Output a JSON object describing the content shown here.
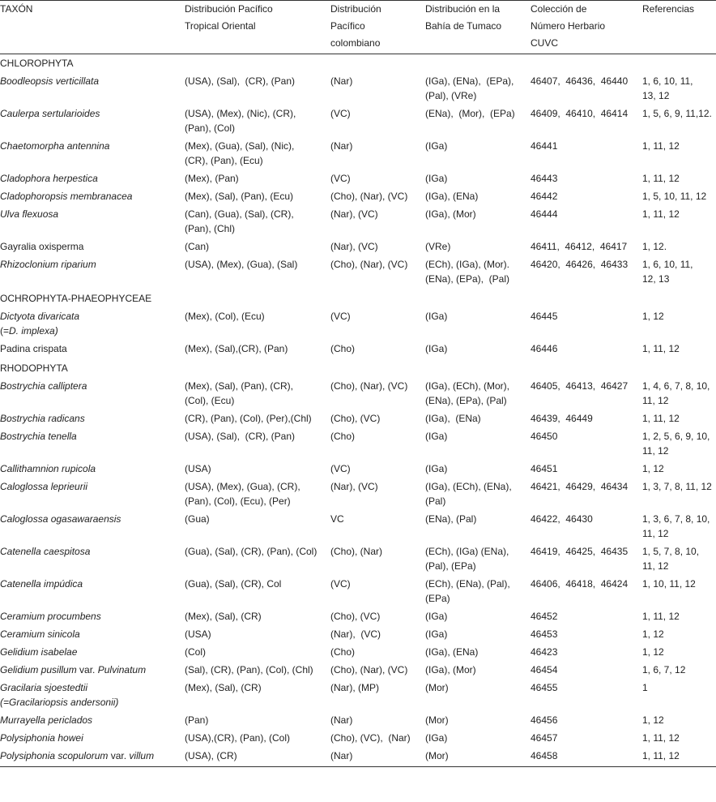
{
  "headers": [
    "TAXÓN",
    "Distribución Pacífico\nTropical Oriental",
    "Distribución\nPacífico\ncolombiano",
    "Distribución en la\nBahía de Tumaco",
    "Colección de\nNúmero Herbario\nCUVC",
    "Referencias"
  ],
  "sections": [
    {
      "title": "CHLOROPHYTA",
      "rows": [
        {
          "taxon": [
            [
              "Boodleopsis verticillata",
              1
            ]
          ],
          "pto": "(USA), (Sal),  (CR), (Pan)",
          "pc": "(Nar)",
          "bt": "(IGa), (ENa),  (EPa),\n(Pal), (VRe)",
          "cuvc": "46407,  46436,  46440",
          "refs": "1, 6, 10, 11,\n13, 12"
        },
        {
          "taxon": [
            [
              "Caulerpa sertularioides",
              1
            ]
          ],
          "pto": "(USA), (Mex), (Nic), (CR),\n(Pan), (Col)",
          "pc": "(VC)",
          "bt": "(ENa),  (Mor),  (EPa)",
          "cuvc": "46409,  46410,  46414",
          "refs": "1, 5, 6, 9, 11,12."
        },
        {
          "taxon": [
            [
              "Chaetomorpha antennina",
              1
            ]
          ],
          "pto": "(Mex), (Gua), (Sal), (Nic),\n(CR), (Pan), (Ecu)",
          "pc": "(Nar)",
          "bt": "(IGa)",
          "cuvc": "46441",
          "refs": "1, 11, 12"
        },
        {
          "taxon": [
            [
              "Cladophora herpestica",
              1
            ]
          ],
          "pto": "(Mex), (Pan)",
          "pc": "(VC)",
          "bt": "(IGa)",
          "cuvc": "46443",
          "refs": "1, 11, 12"
        },
        {
          "taxon": [
            [
              "Cladophoropsis membranacea",
              1
            ]
          ],
          "pto": "(Mex), (Sal), (Pan), (Ecu)",
          "pc": "(Cho), (Nar), (VC)",
          "bt": "(IGa), (ENa)",
          "cuvc": "46442",
          "refs": "1, 5, 10, 11, 12"
        },
        {
          "taxon": [
            [
              "Ulva flexuosa",
              1
            ]
          ],
          "pto": "(Can), (Gua), (Sal), (CR),\n(Pan), (Chl)",
          "pc": "(Nar), (VC)",
          "bt": "(IGa), (Mor)",
          "cuvc": "46444",
          "refs": "1, 11, 12"
        },
        {
          "taxon": [
            [
              "Gayralia oxisperma",
              0
            ]
          ],
          "pto": "(Can)",
          "pc": "(Nar), (VC)",
          "bt": "(VRe)",
          "cuvc": "46411,  46412,  46417",
          "refs": "1, 12."
        },
        {
          "taxon": [
            [
              "Rhizoclonium riparium",
              1
            ]
          ],
          "pto": "(USA), (Mex), (Gua), (Sal)",
          "pc": "(Cho), (Nar), (VC)",
          "bt": "(ECh), (IGa), (Mor).\n(ENa), (EPa),  (Pal)",
          "cuvc": "46420,  46426,  46433",
          "refs": "1, 6, 10, 11,\n12, 13"
        }
      ]
    },
    {
      "title": "OCHROPHYTA-PHAEOPHYCEAE",
      "rows": [
        {
          "taxon": [
            [
              "Dictyota divaricata\n",
              1
            ],
            [
              "(=",
              0
            ],
            [
              "D. implexa)",
              1
            ]
          ],
          "pto": "(Mex), (Col), (Ecu)",
          "pc": "(VC)",
          "bt": "(IGa)",
          "cuvc": "46445",
          "refs": "1, 12"
        },
        {
          "taxon": [
            [
              "Padina crispata",
              0
            ]
          ],
          "pto": "(Mex), (Sal),(CR), (Pan)",
          "pc": "(Cho)",
          "bt": "(IGa)",
          "cuvc": "46446",
          "refs": "1, 11, 12"
        }
      ]
    },
    {
      "title": "RHODOPHYTA",
      "rows": [
        {
          "taxon": [
            [
              "Bostrychia calliptera",
              1
            ]
          ],
          "pto": "(Mex), (Sal), (Pan), (CR),\n(Col), (Ecu)",
          "pc": "(Cho), (Nar), (VC)",
          "bt": "(IGa), (ECh), (Mor),\n(ENa), (EPa), (Pal)",
          "cuvc": "46405,  46413,  46427",
          "refs": "1, 4, 6, 7, 8, 10,\n11, 12"
        },
        {
          "taxon": [
            [
              "Bostrychia radicans",
              1
            ]
          ],
          "pto": "(CR), (Pan), (Col), (Per),(Chl)",
          "pc": "(Cho), (VC)",
          "bt": "(IGa),  (ENa)",
          "cuvc": "46439,  46449",
          "refs": "1, 11, 12"
        },
        {
          "taxon": [
            [
              "Bostrychia tenella",
              1
            ]
          ],
          "pto": "(USA), (Sal),  (CR), (Pan)",
          "pc": "(Cho)",
          "bt": "(IGa)",
          "cuvc": "46450",
          "refs": "1, 2, 5, 6, 9, 10,\n11, 12"
        },
        {
          "taxon": [
            [
              "Callithamnion rupicola",
              1
            ]
          ],
          "pto": "(USA)",
          "pc": "(VC)",
          "bt": "(IGa)",
          "cuvc": "46451",
          "refs": "1, 12"
        },
        {
          "taxon": [
            [
              "Caloglossa leprieurii",
              1
            ]
          ],
          "pto": "(USA), (Mex), (Gua), (CR),\n(Pan), (Col), (Ecu), (Per)",
          "pc": "(Nar), (VC)",
          "bt": "(IGa), (ECh), (ENa),\n(Pal)",
          "cuvc": "46421,  46429,  46434",
          "refs": "1, 3, 7, 8, 11, 12"
        },
        {
          "taxon": [
            [
              "Caloglossa ogasawaraensis",
              1
            ]
          ],
          "pto": "(Gua)",
          "pc": "VC",
          "bt": "(ENa), (Pal)",
          "cuvc": "46422,  46430",
          "refs": "1, 3, 6, 7, 8, 10,\n11, 12"
        },
        {
          "taxon": [
            [
              "Catenella caespitosa",
              1
            ]
          ],
          "pto": "(Gua), (Sal), (CR), (Pan), (Col)",
          "pc": "(Cho), (Nar)",
          "bt": "(ECh), (IGa) (ENa),\n(Pal), (EPa)",
          "cuvc": "46419,  46425,  46435",
          "refs": "1, 5, 7, 8, 10,\n11, 12"
        },
        {
          "taxon": [
            [
              "Catenella impúdica",
              1
            ]
          ],
          "pto": "(Gua), (Sal), (CR), Col",
          "pc": "(VC)",
          "bt": "(ECh), (ENa), (Pal),\n(EPa)",
          "cuvc": "46406,  46418,  46424",
          "refs": "1, 10, 11, 12"
        },
        {
          "taxon": [
            [
              "Ceramium procumbens",
              1
            ]
          ],
          "pto": "(Mex), (Sal), (CR)",
          "pc": "(Cho), (VC)",
          "bt": "(IGa)",
          "cuvc": "46452",
          "refs": "1, 11, 12"
        },
        {
          "taxon": [
            [
              "Ceramium sinicola",
              1
            ]
          ],
          "pto": "(USA)",
          "pc": "(Nar),  (VC)",
          "bt": "(IGa)",
          "cuvc": "46453",
          "refs": "1, 12"
        },
        {
          "taxon": [
            [
              "Gelidium isabelae",
              1
            ]
          ],
          "pto": "(Col)",
          "pc": "(Cho)",
          "bt": "(IGa), (ENa)",
          "cuvc": "46423",
          "refs": "1, 12"
        },
        {
          "taxon": [
            [
              "Gelidium pusillum",
              1
            ],
            [
              " var. ",
              0
            ],
            [
              "Pulvinatum",
              1
            ]
          ],
          "pto": "(Sal), (CR), (Pan), (Col), (Chl)",
          "pc": "(Cho), (Nar), (VC)",
          "bt": "(IGa), (Mor)",
          "cuvc": "46454",
          "refs": "1, 6, 7, 12"
        },
        {
          "taxon": [
            [
              "Gracilaria sjoestedtii\n(=Gracilariopsis andersonii)",
              1
            ]
          ],
          "pto": "(Mex), (Sal), (CR)",
          "pc": "(Nar), (MP)",
          "bt": "(Mor)",
          "cuvc": "46455",
          "refs": "1"
        },
        {
          "taxon": [
            [
              "Murrayella periclados",
              1
            ]
          ],
          "pto": "(Pan)",
          "pc": "(Nar)",
          "bt": "(Mor)",
          "cuvc": "46456",
          "refs": "1, 12"
        },
        {
          "taxon": [
            [
              "Polysiphonia howei",
              1
            ]
          ],
          "pto": "(USA),(CR), (Pan), (Col)",
          "pc": "(Cho), (VC),  (Nar)",
          "bt": "(IGa)",
          "cuvc": "46457",
          "refs": "1, 11, 12"
        },
        {
          "taxon": [
            [
              "Polysiphonia scopulorum",
              1
            ],
            [
              " var. ",
              0
            ],
            [
              "villum",
              1
            ]
          ],
          "pto": "(USA), (CR)",
          "pc": "(Nar)",
          "bt": "(Mor)",
          "cuvc": "46458",
          "refs": "1, 11, 12"
        }
      ]
    }
  ]
}
